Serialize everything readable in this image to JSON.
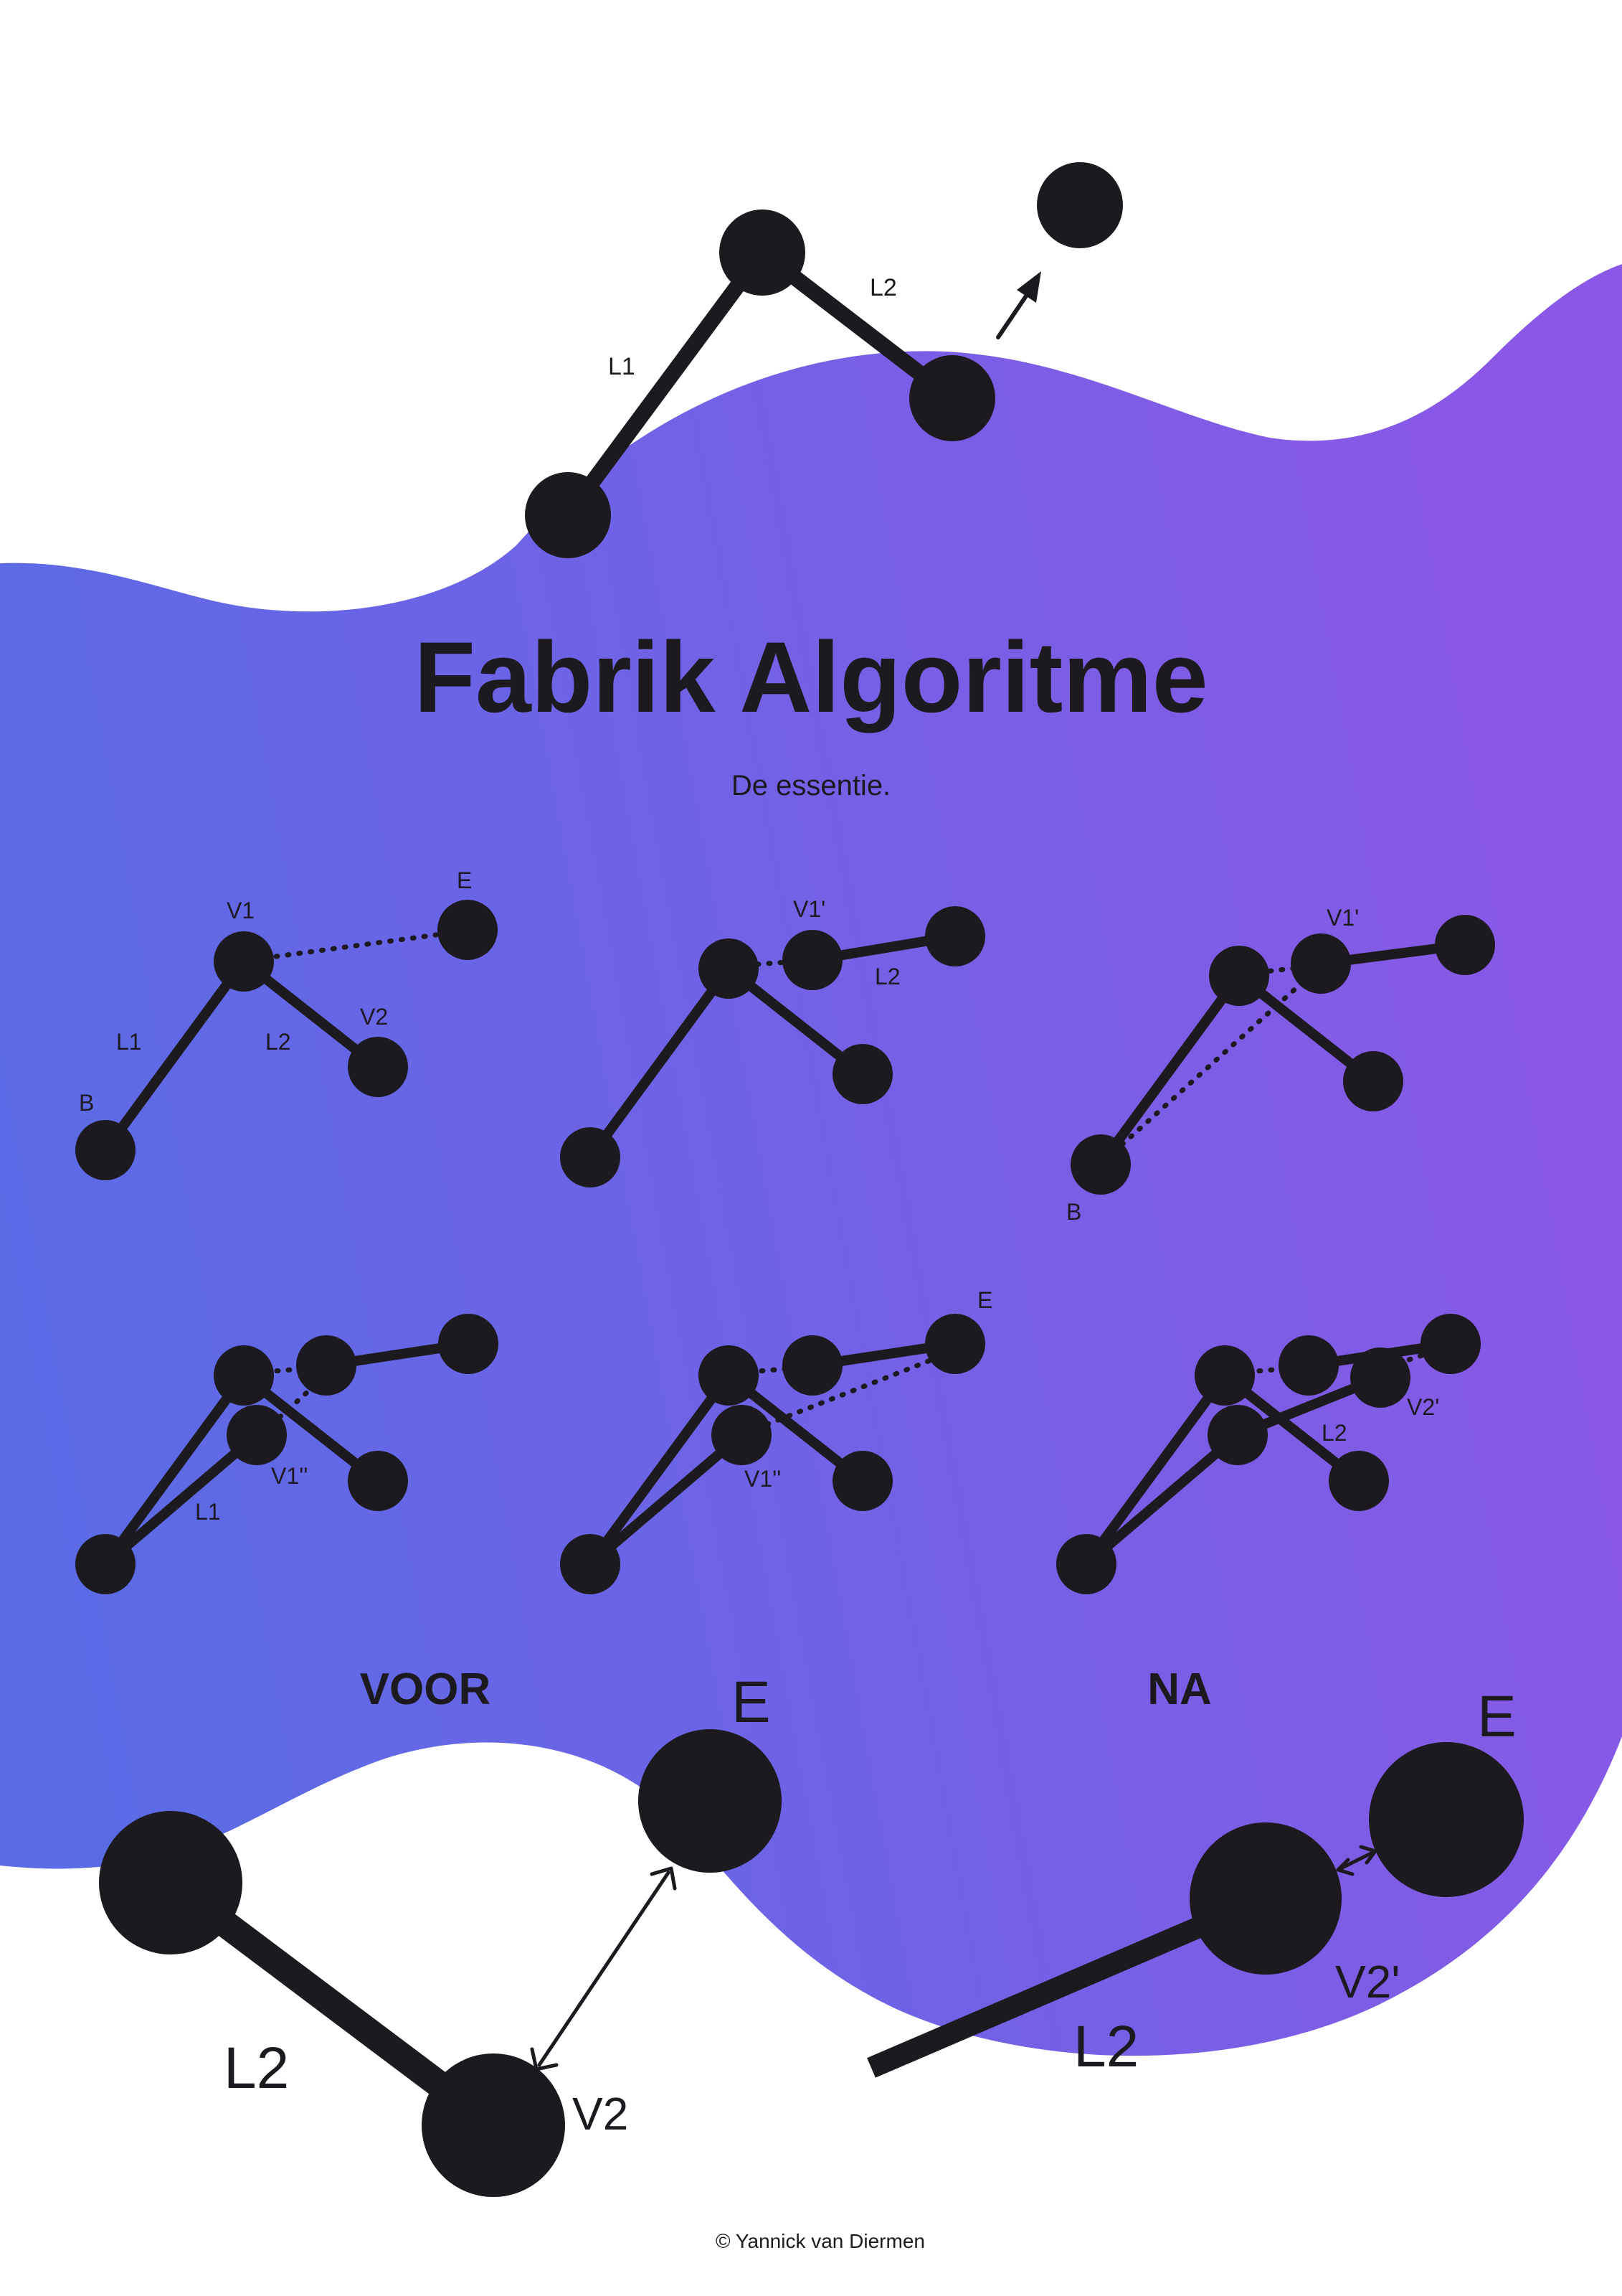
{
  "title": "Fabrik Algoritme",
  "subtitle": "De essentie.",
  "credit": "© Yannick van Diermen",
  "colors": {
    "gradient_start": "#5a6be6",
    "gradient_end": "#8a58e6",
    "ink": "#1c1a1f"
  },
  "labels": {
    "top_l1": "L1",
    "top_l2": "L2",
    "s1_e": "E",
    "s1_v1": "V1",
    "s1_l1": "L1",
    "s1_l2": "L2",
    "s1_v2": "V2",
    "s1_b": "B",
    "s2_v1p": "V1'",
    "s2_l2": "L2",
    "s3_v1p": "V1'",
    "s3_b": "B",
    "s4_v1pp": "V1''",
    "s4_l1": "L1",
    "s5_e": "E",
    "s5_v1pp": "V1''",
    "s6_l2": "L2",
    "s6_v2p": "V2'",
    "voor": "VOOR",
    "na": "NA",
    "voor_e": "E",
    "voor_l2": "L2",
    "voor_v2": "V2",
    "na_e": "E",
    "na_l2": "L2",
    "na_v2p": "V2'"
  }
}
